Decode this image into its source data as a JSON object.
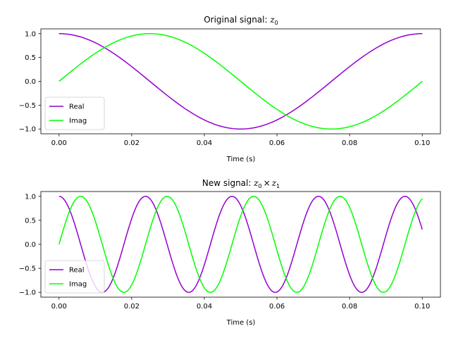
{
  "chart_data": [
    {
      "type": "line",
      "title": {
        "prefix": "Original signal: ",
        "math": "z",
        "sub": "0",
        "suffix_math": "",
        "suffix_sub": ""
      },
      "xlabel": "Time (s)",
      "ylabel": "",
      "xlim": [
        -0.005,
        0.105
      ],
      "ylim": [
        -1.1,
        1.1
      ],
      "xticks": [
        0.0,
        0.02,
        0.04,
        0.06,
        0.08,
        0.1
      ],
      "xtick_labels": [
        "0.00",
        "0.02",
        "0.04",
        "0.06",
        "0.08",
        "0.10"
      ],
      "yticks": [
        1.0,
        0.5,
        0.0,
        -0.5,
        -1.0
      ],
      "ytick_labels": [
        "1.0",
        "0.5",
        "0.0",
        "−0.5",
        "−1.0"
      ],
      "grid": false,
      "legend": "lower-left",
      "x": {
        "start": 0.0,
        "end": 0.1,
        "samples": 201
      },
      "series": [
        {
          "name": "Real",
          "color": "#9400d3",
          "function": "cos",
          "frequency_hz": 10
        },
        {
          "name": "Imag",
          "color": "#00ff00",
          "function": "sin",
          "frequency_hz": 10
        }
      ]
    },
    {
      "type": "line",
      "title": {
        "prefix": "New signal: ",
        "math": "z",
        "sub": "0",
        "times": "×",
        "suffix_math": "z",
        "suffix_sub": "1"
      },
      "xlabel": "Time (s)",
      "ylabel": "",
      "xlim": [
        -0.005,
        0.105
      ],
      "ylim": [
        -1.1,
        1.1
      ],
      "xticks": [
        0.0,
        0.02,
        0.04,
        0.06,
        0.08,
        0.1
      ],
      "xtick_labels": [
        "0.00",
        "0.02",
        "0.04",
        "0.06",
        "0.08",
        "0.10"
      ],
      "yticks": [
        1.0,
        0.5,
        0.0,
        -0.5,
        -1.0
      ],
      "ytick_labels": [
        "1.0",
        "0.5",
        "0.0",
        "−0.5",
        "−1.0"
      ],
      "grid": false,
      "legend": "lower-left",
      "x": {
        "start": 0.0,
        "end": 0.1,
        "samples": 401
      },
      "series": [
        {
          "name": "Real",
          "color": "#9400d3",
          "function": "cos",
          "frequency_hz": 42
        },
        {
          "name": "Imag",
          "color": "#00ff00",
          "function": "sin",
          "frequency_hz": 42
        }
      ]
    }
  ]
}
